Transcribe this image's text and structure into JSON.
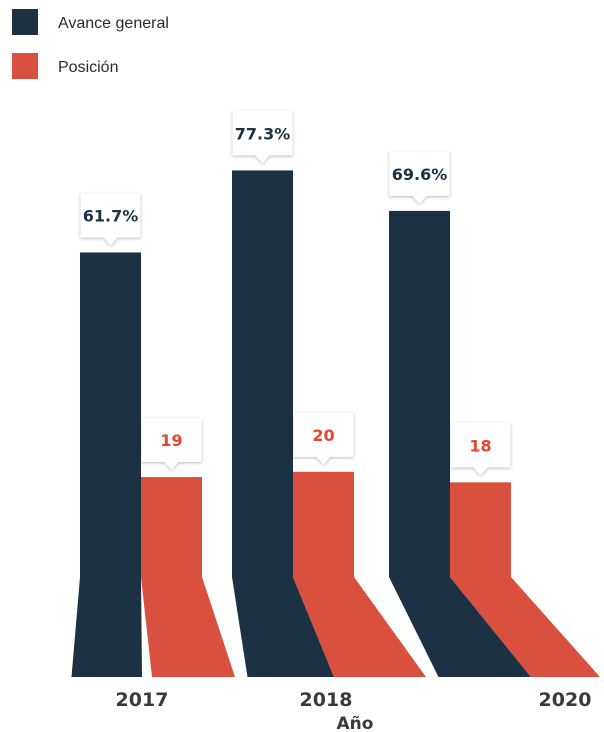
{
  "chart_data": {
    "type": "bar",
    "categories": [
      "2017",
      "2018",
      "2020"
    ],
    "series": [
      {
        "name": "Avance general",
        "values": [
          61.7,
          77.3,
          69.6
        ],
        "labels": [
          "61.7%",
          "77.3%",
          "69.6%"
        ],
        "color": "#1c3144"
      },
      {
        "name": "Posición",
        "values": [
          19,
          20,
          18
        ],
        "labels": [
          "19",
          "20",
          "18"
        ],
        "color": "#d9503e"
      }
    ],
    "xlabel": "Año",
    "ylabel": "",
    "legend_position": "top-left",
    "grid": false,
    "style": "3d-floor-perspective"
  }
}
